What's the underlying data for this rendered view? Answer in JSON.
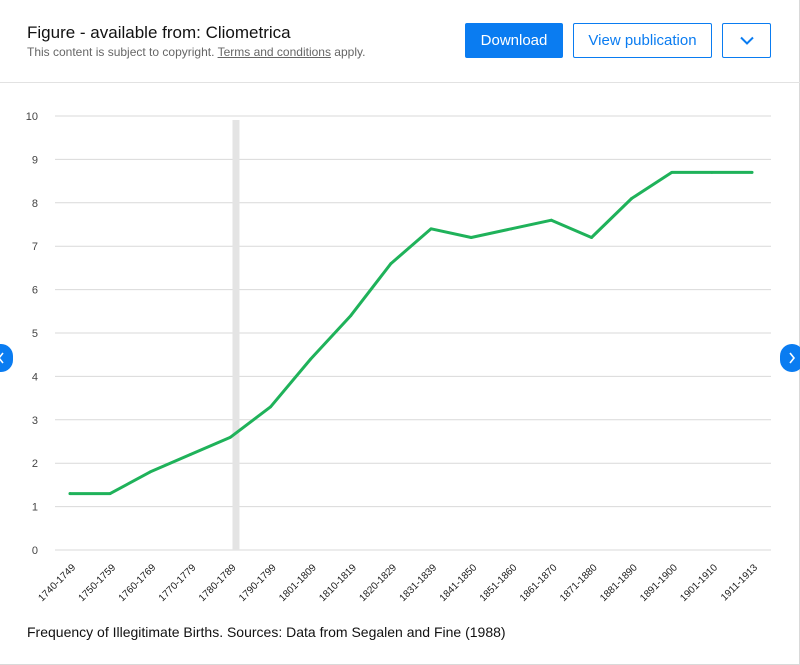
{
  "header": {
    "title": "Figure - available from: Cliometrica",
    "copyright_text": "This content is subject to copyright.",
    "terms_link": "Terms and conditions",
    "apply_text": "apply.",
    "download_label": "Download",
    "view_label": "View publication"
  },
  "icons": {
    "more": "chevron-down-icon",
    "prev": "chevron-left-icon",
    "next": "chevron-right-icon"
  },
  "colors": {
    "accent": "#0a7cf1",
    "series": "#1fb25a",
    "grid": "#d9d9d9",
    "marker": "#e4e4e4"
  },
  "caption": "Frequency of Illegitimate Births. Sources: Data from Segalen and Fine (1988)",
  "chart_data": {
    "type": "line",
    "categories": [
      "1740-1749",
      "1750-1759",
      "1760-1769",
      "1770-1779",
      "1780-1789",
      "1790-1799",
      "1801-1809",
      "1810-1819",
      "1820-1829",
      "1831-1839",
      "1841-1850",
      "1851-1860",
      "1861-1870",
      "1871-1880",
      "1881-1890",
      "1891-1900",
      "1901-1910",
      "1911-1913"
    ],
    "series": [
      {
        "values": [
          1.3,
          1.3,
          1.8,
          2.2,
          2.6,
          3.3,
          4.4,
          5.4,
          6.6,
          7.4,
          7.2,
          7.4,
          7.6,
          7.2,
          8.1,
          8.7,
          8.7,
          8.7
        ]
      }
    ],
    "y_ticks": [
      "0",
      "1",
      "2",
      "3",
      "4",
      "5",
      "6",
      "7",
      "8",
      "9",
      "10"
    ],
    "ylim": [
      0,
      10
    ],
    "grid": true,
    "legend": "none",
    "highlight_category": "1780-1789"
  }
}
